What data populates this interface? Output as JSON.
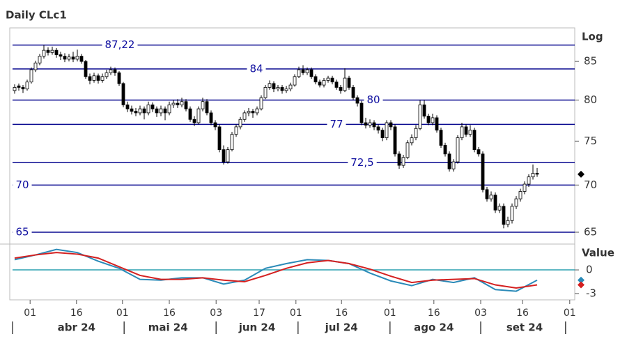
{
  "chart_data": {
    "type": "candlestick",
    "title": "Daily CLc1",
    "scale_label": "Log",
    "log": true,
    "xlim": [
      -0.5,
      134
    ],
    "xticks": [
      {
        "value": 3.7,
        "label": "01"
      },
      {
        "value": 14.8,
        "label": "16"
      },
      {
        "value": 25.8,
        "label": "01"
      },
      {
        "value": 37,
        "label": "16"
      },
      {
        "value": 48.2,
        "label": "03"
      },
      {
        "value": 58.5,
        "label": "17"
      },
      {
        "value": 67.3,
        "label": "01"
      },
      {
        "value": 78.2,
        "label": "16"
      },
      {
        "value": 89.8,
        "label": "01"
      },
      {
        "value": 100.3,
        "label": "16"
      },
      {
        "value": 111.5,
        "label": "03"
      },
      {
        "value": 121.5,
        "label": "16"
      },
      {
        "value": 132.8,
        "label": "01"
      }
    ],
    "x_groups": [
      {
        "value": 14.8,
        "label": "abr 24"
      },
      {
        "value": 36.7,
        "label": "mai 24"
      },
      {
        "value": 58,
        "label": "jun 24"
      },
      {
        "value": 78.2,
        "label": "jul 24"
      },
      {
        "value": 100.3,
        "label": "ago 24"
      },
      {
        "value": 122,
        "label": "set 24"
      }
    ],
    "x_dividers": [
      -0.5,
      26.2,
      48.2,
      67.8,
      89.8,
      111.5,
      131.8
    ],
    "ylim": [
      63.8,
      89.6
    ],
    "yticks": [
      65,
      70,
      75,
      80,
      85
    ],
    "levels": [
      {
        "value": 87.22,
        "label": "87,22"
      },
      {
        "value": 84,
        "label": "84"
      },
      {
        "value": 80,
        "label": "80"
      },
      {
        "value": 77,
        "label": "77"
      },
      {
        "value": 72.5,
        "label": "72,5"
      },
      {
        "value": 70,
        "label": "70"
      },
      {
        "value": 65,
        "label": "65"
      }
    ],
    "ohlc": [
      [
        81.2,
        82.0,
        80.8,
        81.6
      ],
      [
        81.8,
        82.1,
        81.2,
        81.6
      ],
      [
        81.6,
        81.9,
        80.9,
        81.4
      ],
      [
        81.4,
        82.6,
        81.2,
        82.3
      ],
      [
        82.3,
        84.2,
        82.1,
        83.9
      ],
      [
        83.9,
        85.1,
        83.6,
        84.8
      ],
      [
        84.8,
        86.0,
        84.5,
        85.7
      ],
      [
        85.7,
        87.2,
        85.4,
        86.5
      ],
      [
        86.5,
        86.9,
        85.8,
        86.2
      ],
      [
        86.2,
        87.0,
        85.9,
        86.5
      ],
      [
        86.5,
        86.8,
        85.5,
        85.9
      ],
      [
        85.9,
        86.3,
        85.2,
        85.7
      ],
      [
        85.7,
        86.1,
        84.9,
        85.3
      ],
      [
        85.3,
        86.0,
        85.0,
        85.6
      ],
      [
        85.6,
        86.3,
        84.9,
        85.3
      ],
      [
        85.3,
        86.6,
        85.0,
        85.7
      ],
      [
        85.7,
        86.0,
        84.7,
        85.0
      ],
      [
        85.0,
        85.2,
        82.7,
        83.0
      ],
      [
        83.0,
        83.4,
        82.0,
        82.5
      ],
      [
        82.5,
        83.5,
        82.2,
        83.1
      ],
      [
        83.1,
        83.4,
        82.1,
        82.5
      ],
      [
        82.5,
        83.4,
        82.2,
        83.0
      ],
      [
        83.0,
        83.9,
        82.7,
        83.5
      ],
      [
        83.5,
        84.3,
        83.2,
        83.9
      ],
      [
        83.9,
        84.2,
        83.1,
        83.5
      ],
      [
        83.5,
        83.7,
        81.8,
        82.1
      ],
      [
        82.1,
        82.3,
        79.1,
        79.4
      ],
      [
        79.4,
        79.8,
        78.5,
        78.9
      ],
      [
        78.9,
        79.3,
        78.2,
        78.6
      ],
      [
        78.6,
        79.0,
        78.0,
        78.4
      ],
      [
        78.4,
        79.3,
        78.1,
        78.9
      ],
      [
        78.9,
        79.2,
        77.6,
        78.4
      ],
      [
        78.4,
        79.8,
        78.1,
        79.4
      ],
      [
        79.4,
        79.7,
        78.5,
        78.9
      ],
      [
        78.9,
        79.2,
        77.9,
        78.4
      ],
      [
        78.4,
        79.3,
        78.0,
        78.9
      ],
      [
        78.9,
        79.2,
        77.5,
        78.4
      ],
      [
        78.4,
        79.8,
        78.1,
        79.4
      ],
      [
        79.4,
        80.0,
        79.0,
        79.6
      ],
      [
        79.6,
        80.1,
        79.0,
        79.4
      ],
      [
        79.4,
        80.3,
        79.1,
        79.8
      ],
      [
        79.8,
        80.1,
        78.6,
        78.9
      ],
      [
        78.9,
        79.2,
        77.3,
        77.6
      ],
      [
        77.6,
        78.0,
        76.8,
        77.2
      ],
      [
        77.2,
        79.2,
        77.0,
        78.9
      ],
      [
        78.9,
        80.3,
        78.6,
        79.8
      ],
      [
        79.8,
        80.1,
        78.1,
        78.4
      ],
      [
        78.4,
        78.7,
        76.9,
        77.2
      ],
      [
        77.2,
        77.5,
        76.3,
        76.7
      ],
      [
        76.7,
        77.0,
        73.7,
        74.0
      ],
      [
        74.0,
        74.5,
        72.3,
        72.6
      ],
      [
        72.6,
        74.3,
        72.4,
        74.0
      ],
      [
        74.0,
        76.1,
        73.8,
        75.8
      ],
      [
        75.8,
        77.0,
        75.5,
        76.7
      ],
      [
        76.7,
        77.9,
        76.4,
        77.6
      ],
      [
        77.6,
        78.7,
        77.3,
        78.4
      ],
      [
        78.4,
        79.0,
        78.0,
        78.6
      ],
      [
        78.6,
        78.9,
        77.8,
        78.4
      ],
      [
        78.4,
        79.2,
        78.1,
        78.9
      ],
      [
        78.9,
        80.6,
        78.7,
        80.3
      ],
      [
        80.3,
        81.9,
        80.1,
        81.6
      ],
      [
        81.6,
        82.5,
        81.3,
        82.1
      ],
      [
        82.1,
        82.4,
        81.0,
        81.4
      ],
      [
        81.4,
        81.9,
        81.1,
        81.6
      ],
      [
        81.6,
        81.9,
        80.8,
        81.2
      ],
      [
        81.2,
        81.8,
        80.9,
        81.4
      ],
      [
        81.4,
        82.2,
        81.1,
        81.9
      ],
      [
        81.9,
        83.3,
        81.7,
        83.0
      ],
      [
        83.0,
        84.3,
        82.8,
        83.9
      ],
      [
        83.9,
        84.5,
        83.2,
        83.5
      ],
      [
        83.5,
        84.2,
        83.2,
        83.9
      ],
      [
        83.9,
        84.2,
        82.7,
        83.0
      ],
      [
        83.0,
        83.3,
        82.0,
        82.3
      ],
      [
        82.3,
        82.6,
        81.6,
        81.9
      ],
      [
        81.9,
        82.8,
        81.6,
        82.5
      ],
      [
        82.5,
        83.1,
        82.2,
        82.8
      ],
      [
        82.8,
        83.1,
        82.0,
        82.3
      ],
      [
        82.3,
        82.6,
        81.3,
        81.6
      ],
      [
        81.6,
        81.9,
        80.8,
        81.2
      ],
      [
        81.2,
        84.1,
        81.0,
        82.8
      ],
      [
        82.8,
        83.1,
        81.3,
        81.6
      ],
      [
        81.6,
        81.9,
        80.0,
        80.3
      ],
      [
        80.3,
        80.6,
        79.2,
        79.6
      ],
      [
        79.6,
        79.9,
        76.9,
        77.2
      ],
      [
        77.2,
        77.8,
        76.5,
        76.9
      ],
      [
        76.9,
        77.6,
        76.6,
        77.2
      ],
      [
        77.2,
        77.5,
        76.3,
        76.7
      ],
      [
        76.7,
        77.0,
        75.9,
        76.3
      ],
      [
        76.3,
        76.6,
        75.0,
        75.4
      ],
      [
        75.4,
        77.5,
        75.1,
        77.2
      ],
      [
        77.2,
        77.5,
        76.3,
        76.7
      ],
      [
        76.7,
        77.0,
        73.2,
        73.5
      ],
      [
        73.5,
        73.8,
        71.8,
        72.2
      ],
      [
        72.2,
        73.4,
        71.9,
        73.1
      ],
      [
        73.1,
        75.1,
        72.9,
        74.8
      ],
      [
        74.8,
        75.8,
        74.5,
        75.4
      ],
      [
        75.4,
        76.9,
        75.1,
        76.5
      ],
      [
        76.5,
        80.0,
        76.3,
        79.4
      ],
      [
        79.4,
        80.0,
        77.7,
        78.0
      ],
      [
        78.0,
        78.3,
        76.9,
        77.2
      ],
      [
        77.2,
        78.3,
        76.9,
        77.8
      ],
      [
        77.8,
        78.1,
        76.0,
        76.3
      ],
      [
        76.3,
        76.6,
        74.2,
        74.5
      ],
      [
        74.5,
        74.8,
        73.2,
        73.5
      ],
      [
        73.5,
        73.8,
        71.5,
        71.8
      ],
      [
        71.8,
        72.9,
        71.5,
        72.6
      ],
      [
        72.6,
        75.7,
        72.4,
        75.4
      ],
      [
        75.4,
        77.2,
        75.1,
        76.7
      ],
      [
        76.7,
        77.0,
        75.5,
        75.8
      ],
      [
        75.8,
        76.9,
        75.5,
        76.3
      ],
      [
        76.3,
        76.6,
        73.7,
        74.0
      ],
      [
        74.0,
        74.3,
        73.2,
        73.5
      ],
      [
        73.5,
        73.8,
        69.2,
        69.5
      ],
      [
        69.5,
        69.8,
        68.2,
        68.5
      ],
      [
        68.5,
        69.3,
        68.2,
        68.9
      ],
      [
        68.9,
        69.2,
        67.0,
        67.3
      ],
      [
        67.3,
        68.0,
        67.0,
        67.7
      ],
      [
        67.7,
        68.0,
        65.4,
        65.8
      ],
      [
        65.8,
        66.6,
        65.5,
        66.2
      ],
      [
        66.2,
        68.0,
        65.9,
        67.7
      ],
      [
        67.7,
        68.8,
        67.4,
        68.5
      ],
      [
        68.5,
        69.6,
        68.2,
        69.3
      ],
      [
        69.3,
        70.4,
        69.0,
        70.1
      ],
      [
        70.1,
        71.2,
        69.8,
        70.9
      ],
      [
        70.9,
        72.3,
        70.6,
        71.3
      ],
      [
        71.3,
        71.9,
        70.9,
        71.2
      ]
    ],
    "indicator": {
      "title": "Value",
      "ylim": [
        -3.8,
        3.1
      ],
      "yticks": [
        0,
        -3
      ],
      "x": [
        0,
        5,
        10,
        15,
        20,
        25,
        30,
        35,
        40,
        45,
        50,
        55,
        60,
        65,
        70,
        75,
        80,
        85,
        90,
        95,
        100,
        105,
        110,
        115,
        120,
        125
      ],
      "series": [
        {
          "color": "#2a8ab8",
          "values": [
            1.3,
            1.9,
            2.6,
            2.2,
            1.1,
            0.2,
            -1.2,
            -1.3,
            -1.0,
            -1.0,
            -1.8,
            -1.3,
            0.2,
            0.8,
            1.3,
            1.2,
            0.8,
            -0.4,
            -1.4,
            -2.0,
            -1.2,
            -1.6,
            -1.0,
            -2.5,
            -2.7,
            -1.3
          ]
        },
        {
          "color": "#d42020",
          "values": [
            1.5,
            1.9,
            2.2,
            2.0,
            1.5,
            0.4,
            -0.7,
            -1.2,
            -1.2,
            -1.0,
            -1.3,
            -1.5,
            -0.7,
            0.2,
            0.9,
            1.2,
            0.8,
            0.1,
            -0.8,
            -1.6,
            -1.3,
            -1.2,
            -1.1,
            -1.9,
            -2.3,
            -1.9
          ]
        }
      ]
    }
  }
}
